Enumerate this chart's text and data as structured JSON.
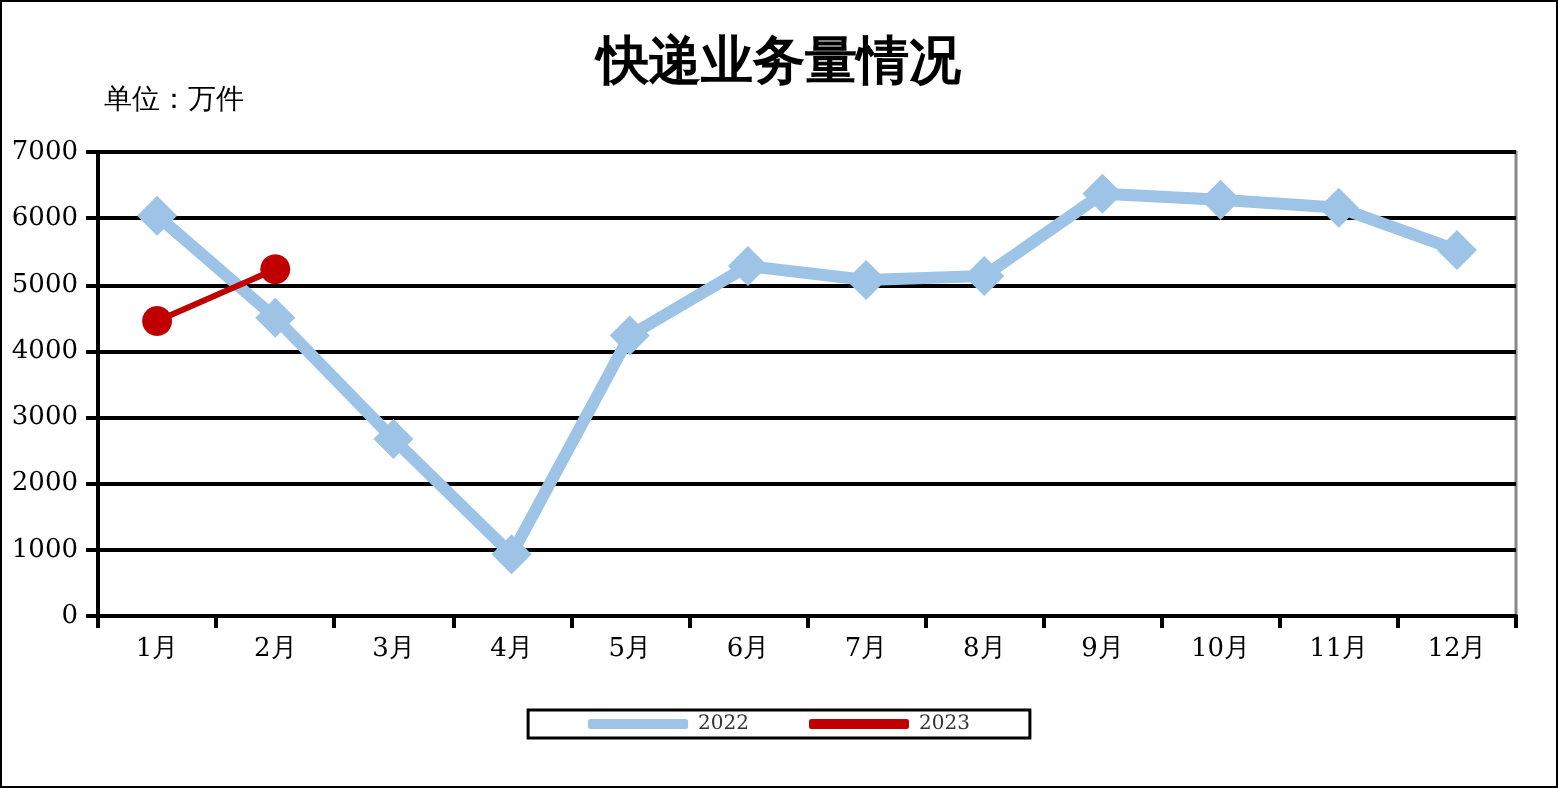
{
  "chart_data": {
    "type": "line",
    "title": "快递业务量情况",
    "ylabel": "单位：万件",
    "categories": [
      "1月",
      "2月",
      "3月",
      "4月",
      "5月",
      "6月",
      "7月",
      "8月",
      "9月",
      "10月",
      "11月",
      "12月"
    ],
    "series": [
      {
        "name": "2022",
        "color": "#9dc3e6",
        "marker": "diamond",
        "values": [
          6040,
          4500,
          2670,
          930,
          4230,
          5280,
          5070,
          5130,
          6370,
          6280,
          6160,
          5520
        ]
      },
      {
        "name": "2023",
        "color": "#c00000",
        "marker": "circle",
        "values": [
          4450,
          5230,
          null,
          null,
          null,
          null,
          null,
          null,
          null,
          null,
          null,
          null
        ]
      }
    ],
    "ylim": [
      0,
      7000
    ],
    "yticks": [
      0,
      1000,
      2000,
      3000,
      4000,
      5000,
      6000,
      7000
    ],
    "grid": "y",
    "legend": "bottom"
  }
}
